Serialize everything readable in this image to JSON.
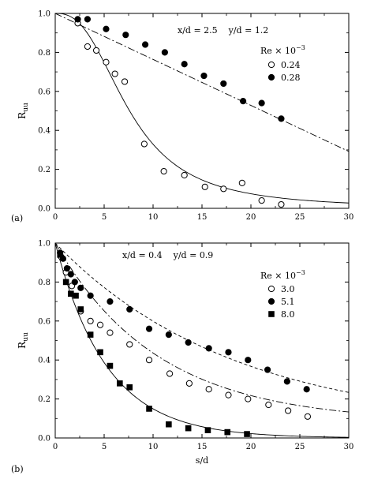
{
  "chart_data": [
    {
      "type": "scatter",
      "panel_label": "(a)",
      "annotation": "x/d = 2.5    y/d = 1.2",
      "ylabel_main": "R",
      "ylabel_sub": "uu",
      "xlabel": "",
      "xlim": [
        0,
        30
      ],
      "ylim": [
        0,
        1.0
      ],
      "xticks": [
        0,
        5,
        10,
        15,
        20,
        25,
        30
      ],
      "yticks": [
        0.0,
        0.2,
        0.4,
        0.6,
        0.8,
        1.0
      ],
      "ytick_labels": [
        "0.0",
        "0.2",
        "0.4",
        "0.6",
        "0.8",
        "1.0"
      ],
      "legend_title": "Re × 10",
      "legend_title_exp": "−3",
      "legend_position": "right",
      "series": [
        {
          "name": "0.24",
          "marker": "open-circle",
          "line": "solid",
          "x": [
            2.3,
            3.3,
            4.2,
            5.2,
            6.1,
            7.1,
            9.1,
            11.1,
            13.2,
            15.3,
            17.2,
            19.1,
            21.1,
            23.1
          ],
          "y": [
            0.95,
            0.83,
            0.81,
            0.75,
            0.69,
            0.65,
            0.33,
            0.19,
            0.17,
            0.11,
            0.1,
            0.13,
            0.04,
            0.02
          ]
        },
        {
          "name": "0.28",
          "marker": "filled-circle",
          "line": "dash-dot",
          "x": [
            2.3,
            3.3,
            5.2,
            7.2,
            9.2,
            11.2,
            13.2,
            15.2,
            17.2,
            19.2,
            21.1,
            23.1
          ],
          "y": [
            0.97,
            0.97,
            0.92,
            0.89,
            0.84,
            0.8,
            0.74,
            0.68,
            0.64,
            0.55,
            0.54,
            0.46
          ]
        }
      ]
    },
    {
      "type": "scatter",
      "panel_label": "(b)",
      "annotation": "x/d = 0.4    y/d = 0.9",
      "ylabel_main": "R",
      "ylabel_sub": "uu",
      "xlabel": "s/d",
      "xlim": [
        0,
        30
      ],
      "ylim": [
        0,
        1.0
      ],
      "xticks": [
        0,
        5,
        10,
        15,
        20,
        25,
        30
      ],
      "yticks": [
        0.0,
        0.2,
        0.4,
        0.6,
        0.8,
        1.0
      ],
      "ytick_labels": [
        "0.0",
        "0.2",
        "0.4",
        "0.6",
        "0.8",
        "1.0"
      ],
      "legend_title": "Re × 10",
      "legend_title_exp": "−3",
      "legend_position": "right",
      "series": [
        {
          "name": "3.0",
          "marker": "open-circle",
          "line": "dash-dot",
          "x": [
            0.6,
            1.1,
            1.7,
            2.6,
            3.6,
            4.6,
            5.6,
            7.6,
            9.6,
            11.7,
            13.7,
            15.7,
            17.7,
            19.7,
            21.8,
            23.8,
            25.8
          ],
          "y": [
            0.93,
            0.85,
            0.78,
            0.65,
            0.6,
            0.58,
            0.54,
            0.48,
            0.4,
            0.33,
            0.28,
            0.25,
            0.22,
            0.2,
            0.17,
            0.14,
            0.11
          ]
        },
        {
          "name": "5.1",
          "marker": "filled-circle",
          "line": "dashed",
          "x": [
            0.5,
            0.8,
            1.2,
            1.6,
            2.0,
            2.6,
            3.6,
            5.6,
            7.6,
            9.6,
            11.6,
            13.6,
            15.7,
            17.7,
            19.7,
            21.7,
            23.7,
            25.7
          ],
          "y": [
            0.95,
            0.92,
            0.87,
            0.84,
            0.8,
            0.77,
            0.73,
            0.7,
            0.66,
            0.56,
            0.53,
            0.49,
            0.46,
            0.44,
            0.4,
            0.35,
            0.29,
            0.25
          ]
        },
        {
          "name": "8.0",
          "marker": "filled-square",
          "line": "solid",
          "x": [
            0.5,
            1.1,
            1.6,
            2.1,
            2.6,
            3.6,
            4.6,
            5.6,
            6.6,
            7.6,
            9.6,
            11.6,
            13.6,
            15.6,
            17.6,
            19.6
          ],
          "y": [
            0.94,
            0.8,
            0.74,
            0.73,
            0.66,
            0.53,
            0.44,
            0.37,
            0.28,
            0.26,
            0.15,
            0.07,
            0.05,
            0.04,
            0.03,
            0.02
          ]
        }
      ]
    }
  ]
}
